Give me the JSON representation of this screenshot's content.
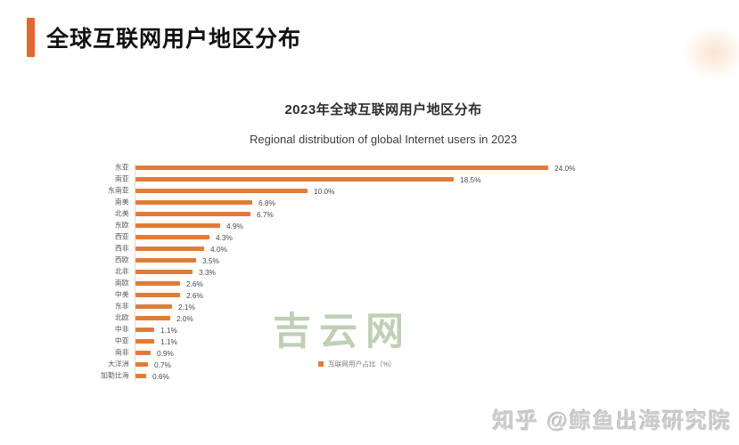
{
  "header": {
    "title": "全球互联网用户地区分布",
    "accent_color": "#E5672F"
  },
  "watermark": "吉云网",
  "attribution": "知乎 @鲸鱼出海研究院",
  "chart_data": {
    "type": "bar",
    "orientation": "horizontal",
    "title": "2023年全球互联网用户地区分布",
    "subtitle": "Regional distribution of global Internet users in 2023",
    "categories": [
      "东亚",
      "南亚",
      "东南亚",
      "南美",
      "北美",
      "东欧",
      "西亚",
      "西非",
      "西欧",
      "北非",
      "南欧",
      "中美",
      "东非",
      "北欧",
      "中非",
      "中亚",
      "南非",
      "大洋洲",
      "加勒比海"
    ],
    "values": [
      24.0,
      18.5,
      10.0,
      6.8,
      6.7,
      4.9,
      4.3,
      4.0,
      3.5,
      3.3,
      2.6,
      2.6,
      2.1,
      2.0,
      1.1,
      1.1,
      0.9,
      0.7,
      0.6
    ],
    "value_labels": [
      "24.0%",
      "18.5%",
      "10.0%",
      "6.8%",
      "6.7%",
      "4.9%",
      "4.3%",
      "4.0%",
      "3.5%",
      "3.3%",
      "2.6%",
      "2.6%",
      "2.1%",
      "2.0%",
      "1.1%",
      "1.1%",
      "0.9%",
      "0.7%",
      "0.6%"
    ],
    "bar_color": "#DE7C3A",
    "xlim": [
      0,
      25
    ],
    "grid": false,
    "legend_position": "bottom-center",
    "legend": [
      {
        "label": "互联网用户占比（%）",
        "color": "#DE7C3A"
      }
    ]
  }
}
